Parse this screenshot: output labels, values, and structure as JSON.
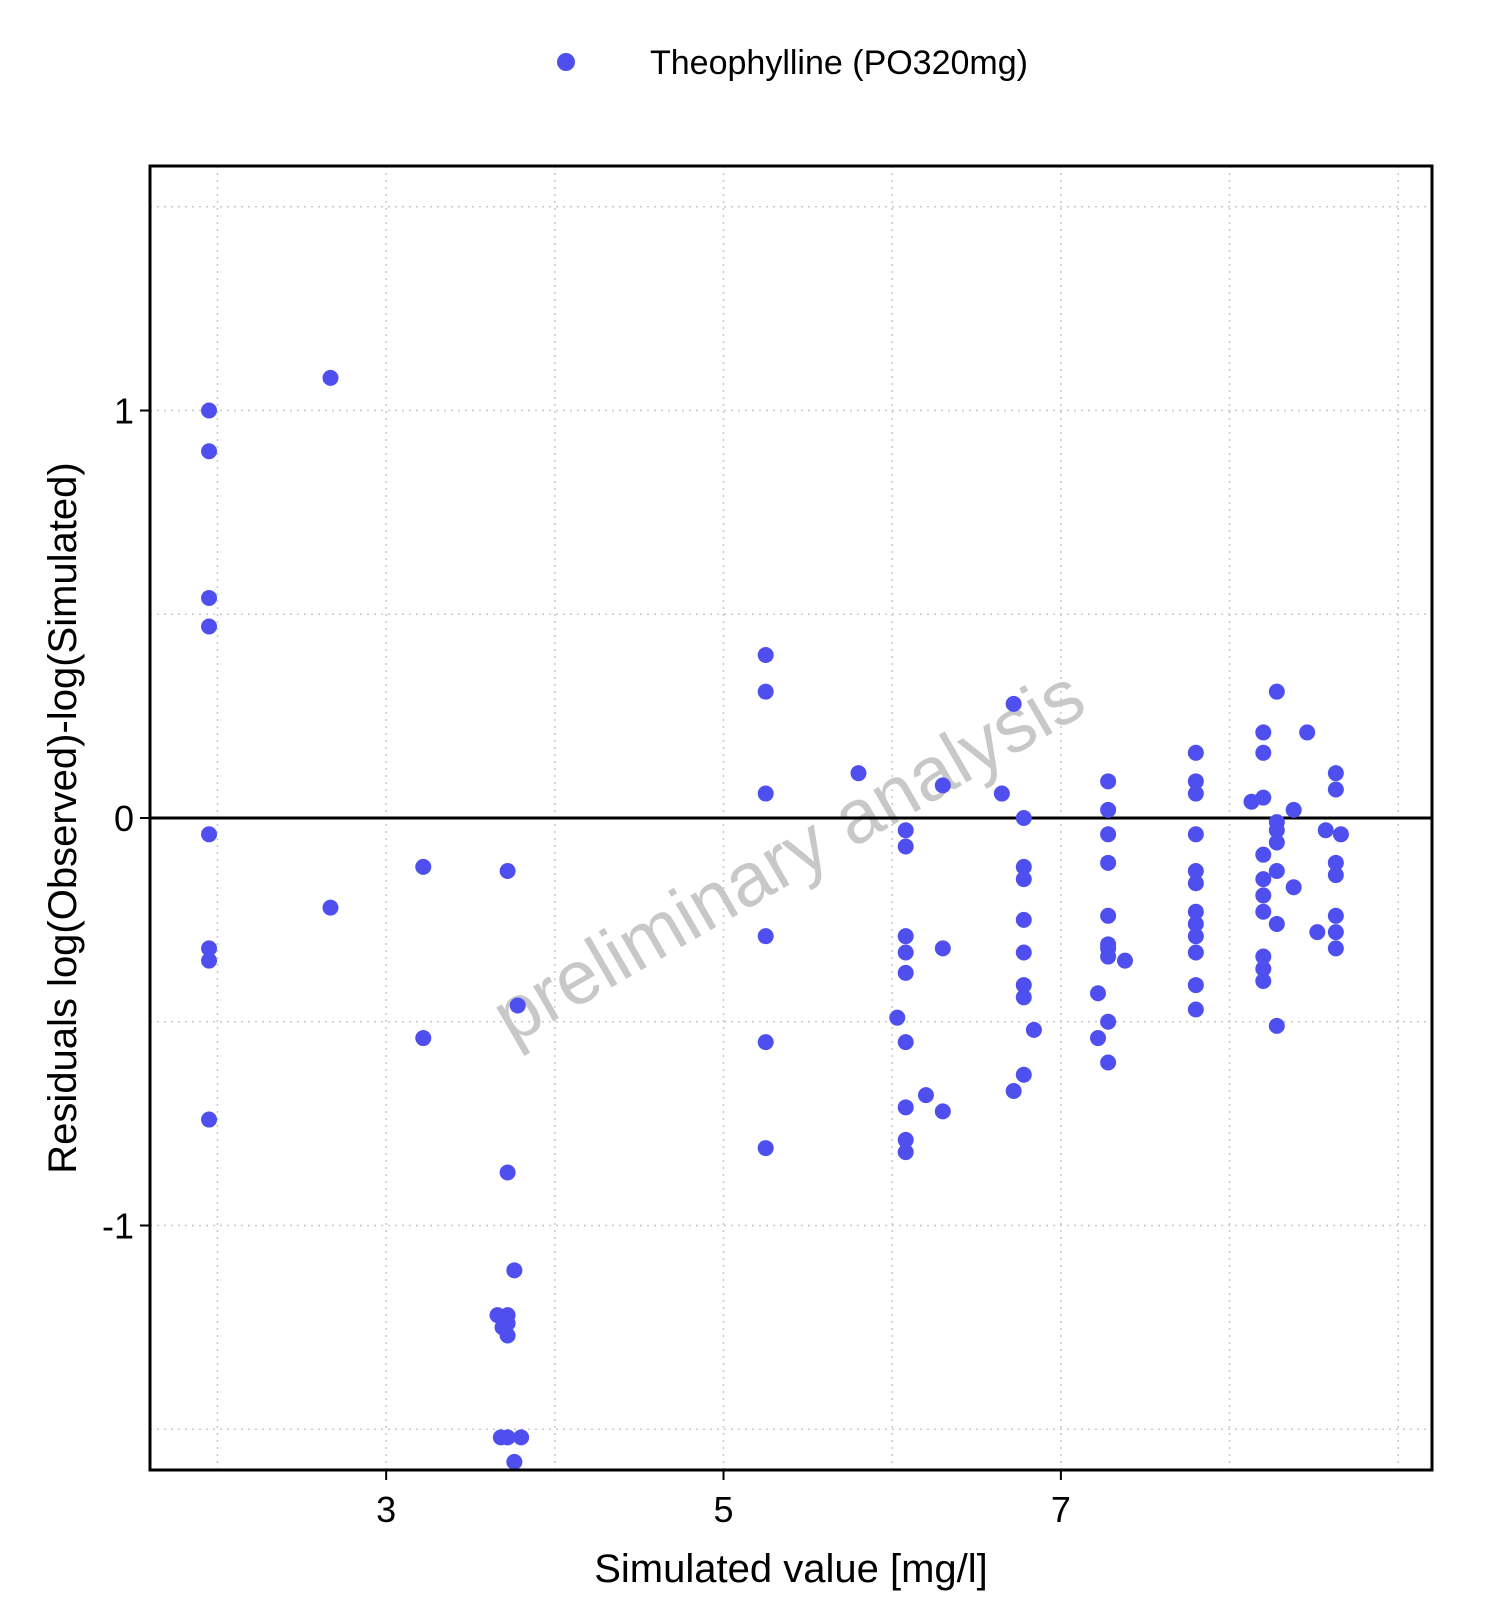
{
  "chart_data": {
    "type": "scatter",
    "title": "",
    "xlabel": "Simulated value [mg/l]",
    "ylabel": "Residuals log(Observed)-log(Simulated)",
    "xlim": [
      1.6,
      9.2
    ],
    "ylim": [
      -1.6,
      1.6
    ],
    "x_ticks": [
      3,
      5,
      7
    ],
    "x_tick_labels": [
      "3",
      "5",
      "7"
    ],
    "x_minor_grid": [
      2,
      4,
      6,
      8,
      9
    ],
    "y_ticks": [
      -1,
      0,
      1
    ],
    "y_tick_labels": [
      "-1",
      "0",
      "1"
    ],
    "y_minor_grid": [
      -1.5,
      -0.5,
      0.5,
      1.5
    ],
    "reference_line_y": 0,
    "grid": "dotted",
    "legend_position": "top",
    "watermark": "preliminary analysis",
    "series": [
      {
        "name": "Theophylline (PO320mg)",
        "color": "#4f4ff0",
        "points": [
          [
            1.95,
            1.0
          ],
          [
            1.95,
            0.9
          ],
          [
            1.95,
            0.54
          ],
          [
            1.95,
            0.47
          ],
          [
            1.95,
            -0.04
          ],
          [
            1.95,
            -0.32
          ],
          [
            1.95,
            -0.35
          ],
          [
            1.95,
            -0.74
          ],
          [
            2.67,
            1.08
          ],
          [
            2.67,
            -0.22
          ],
          [
            3.22,
            -0.12
          ],
          [
            3.22,
            -0.54
          ],
          [
            3.72,
            -0.13
          ],
          [
            3.72,
            -0.87
          ],
          [
            3.72,
            -1.22
          ],
          [
            3.72,
            -1.24
          ],
          [
            3.72,
            -1.27
          ],
          [
            3.72,
            -1.52
          ],
          [
            3.76,
            -1.58
          ],
          [
            3.78,
            -0.46
          ],
          [
            3.76,
            -1.11
          ],
          [
            3.66,
            -1.22
          ],
          [
            3.69,
            -1.25
          ],
          [
            3.68,
            -1.52
          ],
          [
            3.8,
            -1.52
          ],
          [
            5.25,
            0.4
          ],
          [
            5.25,
            0.31
          ],
          [
            5.25,
            0.06
          ],
          [
            5.25,
            -0.29
          ],
          [
            5.25,
            -0.55
          ],
          [
            5.25,
            -0.81
          ],
          [
            5.8,
            0.11
          ],
          [
            6.03,
            -0.49
          ],
          [
            6.08,
            -0.03
          ],
          [
            6.08,
            -0.07
          ],
          [
            6.08,
            -0.29
          ],
          [
            6.08,
            -0.33
          ],
          [
            6.08,
            -0.38
          ],
          [
            6.08,
            -0.55
          ],
          [
            6.08,
            -0.71
          ],
          [
            6.08,
            -0.79
          ],
          [
            6.08,
            -0.82
          ],
          [
            6.2,
            -0.68
          ],
          [
            6.3,
            0.08
          ],
          [
            6.3,
            -0.32
          ],
          [
            6.3,
            -0.72
          ],
          [
            6.65,
            0.06
          ],
          [
            6.72,
            0.28
          ],
          [
            6.72,
            -0.67
          ],
          [
            6.78,
            0.0
          ],
          [
            6.78,
            -0.12
          ],
          [
            6.78,
            -0.15
          ],
          [
            6.78,
            -0.25
          ],
          [
            6.78,
            -0.33
          ],
          [
            6.78,
            -0.41
          ],
          [
            6.78,
            -0.44
          ],
          [
            6.78,
            -0.63
          ],
          [
            6.84,
            -0.52
          ],
          [
            7.22,
            -0.43
          ],
          [
            7.22,
            -0.54
          ],
          [
            7.28,
            0.09
          ],
          [
            7.28,
            0.02
          ],
          [
            7.28,
            -0.04
          ],
          [
            7.28,
            -0.11
          ],
          [
            7.28,
            -0.24
          ],
          [
            7.28,
            -0.31
          ],
          [
            7.28,
            -0.32
          ],
          [
            7.28,
            -0.34
          ],
          [
            7.28,
            -0.5
          ],
          [
            7.28,
            -0.6
          ],
          [
            7.38,
            -0.35
          ],
          [
            7.8,
            0.16
          ],
          [
            7.8,
            0.09
          ],
          [
            7.8,
            0.06
          ],
          [
            7.8,
            -0.04
          ],
          [
            7.8,
            -0.13
          ],
          [
            7.8,
            -0.16
          ],
          [
            7.8,
            -0.23
          ],
          [
            7.8,
            -0.26
          ],
          [
            7.8,
            -0.29
          ],
          [
            7.8,
            -0.33
          ],
          [
            7.8,
            -0.41
          ],
          [
            7.8,
            -0.47
          ],
          [
            8.13,
            0.04
          ],
          [
            8.2,
            0.21
          ],
          [
            8.2,
            0.16
          ],
          [
            8.2,
            0.05
          ],
          [
            8.2,
            -0.09
          ],
          [
            8.2,
            -0.15
          ],
          [
            8.2,
            -0.19
          ],
          [
            8.2,
            -0.23
          ],
          [
            8.2,
            -0.34
          ],
          [
            8.2,
            -0.37
          ],
          [
            8.2,
            -0.4
          ],
          [
            8.28,
            0.31
          ],
          [
            8.28,
            -0.01
          ],
          [
            8.28,
            -0.03
          ],
          [
            8.28,
            -0.06
          ],
          [
            8.28,
            -0.13
          ],
          [
            8.28,
            -0.26
          ],
          [
            8.28,
            -0.51
          ],
          [
            8.38,
            0.02
          ],
          [
            8.38,
            -0.17
          ],
          [
            8.46,
            0.21
          ],
          [
            8.52,
            -0.28
          ],
          [
            8.57,
            -0.03
          ],
          [
            8.63,
            0.11
          ],
          [
            8.63,
            0.07
          ],
          [
            8.63,
            -0.11
          ],
          [
            8.63,
            -0.14
          ],
          [
            8.63,
            -0.24
          ],
          [
            8.63,
            -0.28
          ],
          [
            8.63,
            -0.32
          ],
          [
            8.66,
            -0.04
          ]
        ]
      }
    ]
  }
}
